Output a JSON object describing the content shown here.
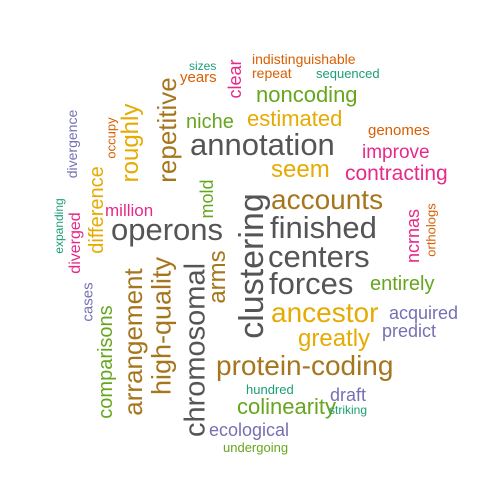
{
  "colors": {
    "gray": "#555555",
    "brown": "#a6761d",
    "green": "#66a61e",
    "orange": "#d95f02",
    "pink": "#e7298a",
    "purple": "#7570b3",
    "teal": "#1b9e77",
    "gold": "#e6ab02"
  },
  "words": [
    {
      "text": "indistinguishable",
      "color": "orange"
    },
    {
      "text": "sizes",
      "color": "teal"
    },
    {
      "text": "years",
      "color": "orange"
    },
    {
      "text": "repeat",
      "color": "orange"
    },
    {
      "text": "sequenced",
      "color": "teal"
    },
    {
      "text": "clear",
      "color": "pink"
    },
    {
      "text": "noncoding",
      "color": "green"
    },
    {
      "text": "repetitive",
      "color": "brown"
    },
    {
      "text": "roughly",
      "color": "gold"
    },
    {
      "text": "occupy",
      "color": "orange"
    },
    {
      "text": "divergence",
      "color": "purple"
    },
    {
      "text": "niche",
      "color": "green"
    },
    {
      "text": "estimated",
      "color": "gold"
    },
    {
      "text": "genomes",
      "color": "orange"
    },
    {
      "text": "annotation",
      "color": "gray"
    },
    {
      "text": "improve",
      "color": "pink"
    },
    {
      "text": "seem",
      "color": "gold"
    },
    {
      "text": "contracting",
      "color": "pink"
    },
    {
      "text": "difference",
      "color": "gold"
    },
    {
      "text": "accounts",
      "color": "brown"
    },
    {
      "text": "mold",
      "color": "green"
    },
    {
      "text": "million",
      "color": "pink"
    },
    {
      "text": "clustering",
      "color": "gray"
    },
    {
      "text": "finished",
      "color": "gray"
    },
    {
      "text": "ncrnas",
      "color": "pink"
    },
    {
      "text": "orthologs",
      "color": "orange"
    },
    {
      "text": "expanding",
      "color": "teal"
    },
    {
      "text": "operons",
      "color": "gray"
    },
    {
      "text": "diverged",
      "color": "pink"
    },
    {
      "text": "centers",
      "color": "gray"
    },
    {
      "text": "arrangement",
      "color": "brown"
    },
    {
      "text": "high-quality",
      "color": "brown"
    },
    {
      "text": "chromosomal",
      "color": "gray"
    },
    {
      "text": "arms",
      "color": "brown"
    },
    {
      "text": "forces",
      "color": "gray"
    },
    {
      "text": "entirely",
      "color": "green"
    },
    {
      "text": "cases",
      "color": "purple"
    },
    {
      "text": "ancestor",
      "color": "gold"
    },
    {
      "text": "acquired",
      "color": "purple"
    },
    {
      "text": "comparisons",
      "color": "green"
    },
    {
      "text": "greatly",
      "color": "gold"
    },
    {
      "text": "predict",
      "color": "purple"
    },
    {
      "text": "protein-coding",
      "color": "brown"
    },
    {
      "text": "hundred",
      "color": "teal"
    },
    {
      "text": "draft",
      "color": "purple"
    },
    {
      "text": "colinearity",
      "color": "green"
    },
    {
      "text": "striking",
      "color": "teal"
    },
    {
      "text": "ecological",
      "color": "purple"
    },
    {
      "text": "undergoing",
      "color": "green"
    }
  ]
}
